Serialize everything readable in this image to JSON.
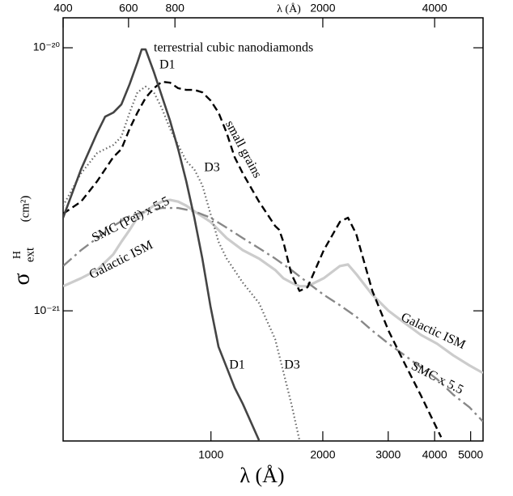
{
  "chart_data": {
    "type": "line",
    "xlabel": "λ (Å)",
    "ylabel": {
      "symbol": "σ",
      "superscript": "H",
      "subscript": "ext",
      "unit": "(cm²)"
    },
    "xscale": "log",
    "yscale": "log",
    "grid": false,
    "xlim": [
      400,
      5400
    ],
    "ylim": [
      3.2e-22,
      1.3e-20
    ],
    "xticks": [
      1000,
      2000,
      3000,
      4000,
      5000
    ],
    "x2ticks": [
      400,
      600,
      800,
      2000,
      4000
    ],
    "yticks": [
      {
        "value": 1e-20,
        "label": "10⁻²⁰"
      },
      {
        "value": 1e-21,
        "label": "10⁻²¹"
      }
    ],
    "series": [
      {
        "color": "#cccccc",
        "style": "solid",
        "width": 3.2,
        "x": [
          400,
          447,
          494,
          546,
          574,
          604,
          634,
          667,
          702,
          738,
          776,
          816,
          858,
          902,
          997,
          1102,
          1218,
          1347,
          1489,
          1566,
          1646,
          1731,
          1820,
          2012,
          2224,
          2338,
          2460,
          2719,
          3006,
          3323,
          3673,
          4060,
          4489,
          4963,
          5400
        ],
        "values": [
          1.24e-21,
          1.33e-21,
          1.43e-21,
          1.64e-21,
          1.83e-21,
          2.03e-21,
          2.26e-21,
          2.39e-21,
          2.51e-21,
          2.6e-21,
          2.64e-21,
          2.6e-21,
          2.51e-21,
          2.39e-21,
          2.18e-21,
          1.89e-21,
          1.7e-21,
          1.58e-21,
          1.43e-21,
          1.33e-21,
          1.28e-21,
          1.24e-21,
          1.24e-21,
          1.33e-21,
          1.48e-21,
          1.5e-21,
          1.38e-21,
          1.15e-21,
          1e-21,
          8.99e-22,
          8.1e-22,
          7.5e-22,
          6.77e-22,
          6.2e-22,
          5.8e-22
        ]
      },
      {
        "color": "#888888",
        "style": "dashdot",
        "width": 2.4,
        "x": [
          400,
          447,
          494,
          546,
          604,
          667,
          738,
          816,
          902,
          997,
          1102,
          1218,
          1347,
          1489,
          1646,
          1820,
          2012,
          2224,
          2460,
          2719,
          3006,
          3323,
          3673,
          4060,
          4489,
          4963,
          5400
        ],
        "values": [
          1.48e-21,
          1.7e-21,
          1.89e-21,
          2.1e-21,
          2.29e-21,
          2.39e-21,
          2.46e-21,
          2.46e-21,
          2.39e-21,
          2.26e-21,
          2.07e-21,
          1.89e-21,
          1.73e-21,
          1.58e-21,
          1.43e-21,
          1.28e-21,
          1.15e-21,
          1.05e-21,
          9.5e-22,
          8.4e-22,
          7.5e-22,
          6.77e-22,
          6.1e-22,
          5.5e-22,
          4.8e-22,
          4.3e-22,
          3.79e-22
        ]
      },
      {
        "color": "#666666",
        "style": "dotted",
        "width": 2.2,
        "x": [
          400,
          447,
          494,
          546,
          574,
          604,
          634,
          667,
          702,
          738,
          776,
          816,
          858,
          902,
          948,
          997,
          1048,
          1102,
          1218,
          1347,
          1489,
          1646,
          1731
        ],
        "values": [
          2.51e-21,
          3.33e-21,
          3.98e-21,
          4.27e-21,
          4.59e-21,
          5.67e-21,
          6.77e-21,
          7.12e-21,
          6.77e-21,
          5.88e-21,
          4.92e-21,
          4.27e-21,
          3.71e-21,
          3.45e-21,
          3e-21,
          2.34e-21,
          1.83e-21,
          1.58e-21,
          1.28e-21,
          1.07e-21,
          7.8e-22,
          4.43e-22,
          3.22e-22
        ]
      },
      {
        "color": "#000000",
        "style": "dashed",
        "width": 2.4,
        "x": [
          400,
          447,
          494,
          546,
          574,
          604,
          634,
          667,
          702,
          738,
          776,
          816,
          858,
          902,
          948,
          997,
          1048,
          1102,
          1158,
          1218,
          1347,
          1489,
          1527,
          1566,
          1646,
          1731,
          1820,
          2012,
          2224,
          2338,
          2460,
          2719,
          3006,
          3323,
          3673,
          4060,
          4164
        ],
        "values": [
          2.34e-21,
          2.6e-21,
          3.11e-21,
          3.84e-21,
          4.12e-21,
          4.92e-21,
          5.67e-21,
          6.45e-21,
          7.02e-21,
          7.43e-21,
          7.37e-21,
          7.02e-21,
          6.92e-21,
          6.92e-21,
          6.77e-21,
          6.31e-21,
          5.67e-21,
          4.75e-21,
          3.84e-21,
          3.33e-21,
          2.6e-21,
          2.1e-21,
          2.03e-21,
          1.83e-21,
          1.38e-21,
          1.19e-21,
          1.23e-21,
          1.7e-21,
          2.18e-21,
          2.26e-21,
          1.96e-21,
          1.19e-21,
          8.4e-22,
          6.3e-22,
          4.77e-22,
          3.56e-22,
          3.31e-22
        ]
      },
      {
        "color": "#444444",
        "style": "solid",
        "width": 2.6,
        "x": [
          400,
          447,
          494,
          519,
          546,
          574,
          604,
          634,
          651,
          667,
          702,
          738,
          776,
          816,
          858,
          902,
          948,
          997,
          1048,
          1102,
          1158,
          1218,
          1347
        ],
        "values": [
          2.26e-21,
          3.45e-21,
          4.75e-21,
          5.47e-21,
          5.67e-21,
          6.09e-21,
          7.27e-21,
          8.8e-21,
          9.86e-21,
          9.86e-21,
          8.09e-21,
          6.54e-21,
          5.28e-21,
          4.12e-21,
          3.11e-21,
          2.26e-21,
          1.58e-21,
          1.04e-21,
          7.3e-22,
          6.1e-22,
          5.1e-22,
          4.43e-22,
          3.22e-22
        ]
      }
    ],
    "annotations": [
      {
        "text": "terrestrial cubic nanodiamonds",
        "color": "#000000"
      },
      {
        "text": "D1",
        "color": "#000000"
      },
      {
        "text": "small grains",
        "color": "#000000"
      },
      {
        "text": "D3",
        "color": "#777777"
      },
      {
        "text": "SMC (Pei) x 5.5",
        "color": "#888888"
      },
      {
        "text": "Galactic ISM",
        "color": "#999999"
      },
      {
        "text": "D1",
        "color": "#000000"
      },
      {
        "text": "D3",
        "color": "#777777"
      },
      {
        "text": "Galactic ISM",
        "color": "#999999"
      },
      {
        "text": "SMC x 5.5",
        "color": "#777777"
      }
    ]
  }
}
